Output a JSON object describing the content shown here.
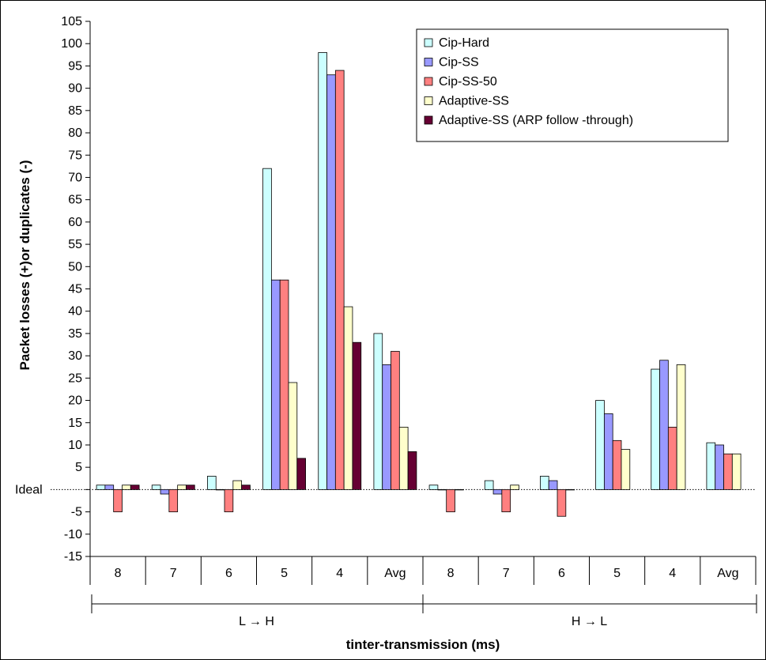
{
  "chart_data": {
    "type": "bar",
    "title": "",
    "ylabel": "Packet losses (+)or duplicates (-)",
    "xlabel": "tinter-transmission (ms)",
    "ylim": [
      -15,
      105
    ],
    "ytick_step": 5,
    "ideal_label": "Ideal",
    "grid": false,
    "legend_position": "top-right",
    "groups": [
      {
        "label": "L → H",
        "categories": [
          "8",
          "7",
          "6",
          "5",
          "4",
          "Avg"
        ]
      },
      {
        "label": "H → L",
        "categories": [
          "8",
          "7",
          "6",
          "5",
          "4",
          "Avg"
        ]
      }
    ],
    "categories": [
      "8",
      "7",
      "6",
      "5",
      "4",
      "Avg",
      "8",
      "7",
      "6",
      "5",
      "4",
      "Avg"
    ],
    "series": [
      {
        "name": "Cip-Hard",
        "color": "#ccffff",
        "values": [
          1,
          1,
          3,
          72,
          98,
          35,
          1,
          2,
          3,
          20,
          27,
          10.5
        ]
      },
      {
        "name": "Cip-SS",
        "color": "#9999ff",
        "values": [
          1,
          -1,
          0,
          47,
          93,
          28,
          0,
          -1,
          2,
          17,
          29,
          10
        ]
      },
      {
        "name": "Cip-SS-50",
        "color": "#ff8080",
        "values": [
          -5,
          -5,
          -5,
          47,
          94,
          31,
          -5,
          -5,
          -6,
          11,
          14,
          8
        ]
      },
      {
        "name": "Adaptive-SS",
        "color": "#ffffcc",
        "values": [
          1,
          1,
          2,
          24,
          41,
          14,
          0,
          1,
          0,
          9,
          28,
          8
        ]
      },
      {
        "name": "Adaptive-SS (ARP follow -through)",
        "color": "#660033",
        "values": [
          1,
          1,
          1,
          7,
          33,
          8.5,
          null,
          null,
          null,
          null,
          null,
          null
        ]
      }
    ]
  }
}
